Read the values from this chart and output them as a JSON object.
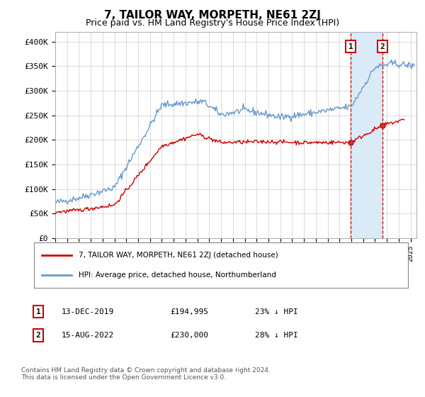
{
  "title": "7, TAILOR WAY, MORPETH, NE61 2ZJ",
  "subtitle": "Price paid vs. HM Land Registry's House Price Index (HPI)",
  "ylabel_ticks": [
    "£0",
    "£50K",
    "£100K",
    "£150K",
    "£200K",
    "£250K",
    "£300K",
    "£350K",
    "£400K"
  ],
  "ytick_values": [
    0,
    50000,
    100000,
    150000,
    200000,
    250000,
    300000,
    350000,
    400000
  ],
  "ylim": [
    0,
    420000
  ],
  "xlim_start": 1995.0,
  "xlim_end": 2025.5,
  "marker1_x": 2019.95,
  "marker1_y": 194995,
  "marker2_x": 2022.62,
  "marker2_y": 230000,
  "legend_line1": "7, TAILOR WAY, MORPETH, NE61 2ZJ (detached house)",
  "legend_line2": "HPI: Average price, detached house, Northumberland",
  "footer": "Contains HM Land Registry data © Crown copyright and database right 2024.\nThis data is licensed under the Open Government Licence v3.0.",
  "line_color_red": "#cc0000",
  "line_color_blue": "#6699cc",
  "marker_box_color": "#cc0000",
  "shade_color": "#daeaf7",
  "grid_color": "#cccccc",
  "background_color": "#ffffff",
  "ann1_date": "13-DEC-2019",
  "ann1_price": "£194,995",
  "ann1_hpi": "23% ↓ HPI",
  "ann2_date": "15-AUG-2022",
  "ann2_price": "£230,000",
  "ann2_hpi": "28% ↓ HPI"
}
